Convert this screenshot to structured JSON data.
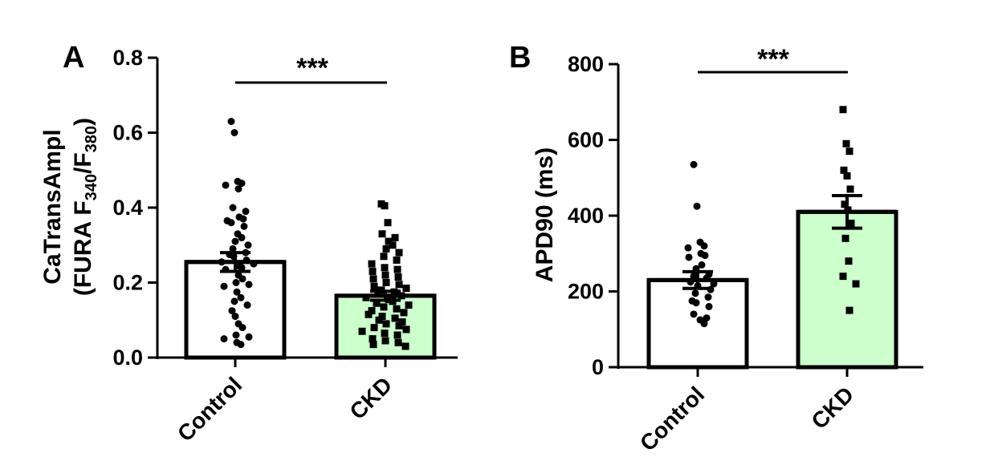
{
  "chart_data": [
    {
      "type": "bar",
      "panel_label": "A",
      "ylabel_line1": "CaTransAmpl",
      "ylabel_line2_pre": "(FURA F",
      "ylabel_sub1": "340",
      "ylabel_mid": "/F",
      "ylabel_sub2": "380",
      "ylabel_close": ")",
      "ylim": [
        0,
        0.8
      ],
      "yticks": [
        "0.0",
        "0.2",
        "0.4",
        "0.6",
        "0.8"
      ],
      "ytick_values": [
        0,
        0.2,
        0.4,
        0.6,
        0.8
      ],
      "categories": [
        "Control",
        "CKD"
      ],
      "values": [
        0.255,
        0.165
      ],
      "sem": [
        0.025,
        0.012
      ],
      "bar_colors": [
        "#ffffff",
        "#ccffcc"
      ],
      "marker_shapes": [
        "circle",
        "square"
      ],
      "significance": "***",
      "points": [
        [
          0.63,
          0.6,
          0.47,
          0.465,
          0.46,
          0.45,
          0.4,
          0.39,
          0.375,
          0.37,
          0.365,
          0.36,
          0.35,
          0.33,
          0.32,
          0.31,
          0.3,
          0.29,
          0.28,
          0.275,
          0.27,
          0.26,
          0.255,
          0.25,
          0.245,
          0.24,
          0.235,
          0.22,
          0.21,
          0.2,
          0.195,
          0.19,
          0.175,
          0.16,
          0.15,
          0.14,
          0.125,
          0.11,
          0.09,
          0.08,
          0.06,
          0.055,
          0.05,
          0.04,
          0.035
        ],
        [
          0.41,
          0.405,
          0.36,
          0.33,
          0.32,
          0.31,
          0.3,
          0.29,
          0.28,
          0.27,
          0.26,
          0.25,
          0.24,
          0.235,
          0.23,
          0.22,
          0.215,
          0.21,
          0.2,
          0.195,
          0.19,
          0.185,
          0.18,
          0.175,
          0.17,
          0.165,
          0.16,
          0.155,
          0.15,
          0.145,
          0.14,
          0.135,
          0.13,
          0.125,
          0.12,
          0.115,
          0.11,
          0.105,
          0.1,
          0.095,
          0.09,
          0.085,
          0.08,
          0.075,
          0.07,
          0.065,
          0.06,
          0.05,
          0.045,
          0.04,
          0.035,
          0.03
        ]
      ]
    },
    {
      "type": "bar",
      "panel_label": "B",
      "ylabel": "APD90 (ms)",
      "ylim": [
        0,
        800
      ],
      "yticks": [
        "0",
        "200",
        "400",
        "600",
        "800"
      ],
      "ytick_values": [
        0,
        200,
        400,
        600,
        800
      ],
      "categories": [
        "Control",
        "CKD"
      ],
      "values": [
        230,
        410
      ],
      "sem": [
        22,
        43
      ],
      "bar_colors": [
        "#ffffff",
        "#ccffcc"
      ],
      "marker_shapes": [
        "circle",
        "square"
      ],
      "significance": "***",
      "points": [
        [
          535,
          425,
          330,
          320,
          315,
          300,
          295,
          290,
          270,
          260,
          245,
          240,
          235,
          225,
          220,
          215,
          205,
          195,
          185,
          175,
          170,
          160,
          140,
          130,
          125,
          115
        ],
        [
          680,
          590,
          570,
          520,
          505,
          470,
          430,
          415,
          380,
          340,
          280,
          240,
          220,
          150
        ]
      ]
    }
  ]
}
